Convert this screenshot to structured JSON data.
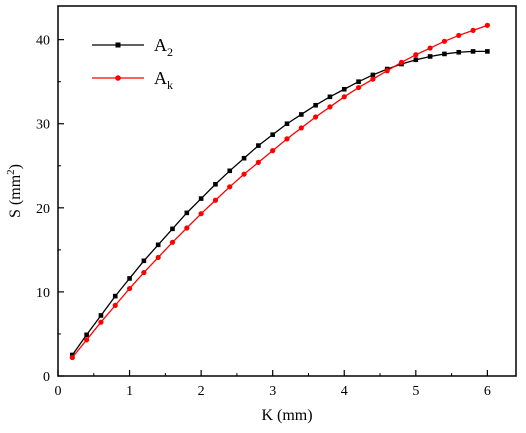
{
  "chart_data": {
    "type": "line",
    "xlabel": "K (mm)",
    "ylabel_main": "S (mm",
    "ylabel_sup": "2",
    "ylabel_close": ")",
    "xlim": [
      0,
      6.4
    ],
    "ylim": [
      0,
      44
    ],
    "xticks": [
      0,
      1,
      2,
      3,
      4,
      5,
      6
    ],
    "yticks": [
      0,
      10,
      20,
      30,
      40
    ],
    "legend_position": "top-left",
    "x": [
      0.2,
      0.4,
      0.6,
      0.8,
      1.0,
      1.2,
      1.4,
      1.6,
      1.8,
      2.0,
      2.2,
      2.4,
      2.6,
      2.8,
      3.0,
      3.2,
      3.4,
      3.6,
      3.8,
      4.0,
      4.2,
      4.4,
      4.6,
      4.8,
      5.0,
      5.2,
      5.4,
      5.6,
      5.8,
      6.0
    ],
    "series": [
      {
        "name_base": "A",
        "name_sub": "2",
        "color": "#000000",
        "values": [
          2.5,
          4.9,
          7.2,
          9.5,
          11.6,
          13.7,
          15.6,
          17.5,
          19.4,
          21.1,
          22.8,
          24.4,
          25.9,
          27.4,
          28.7,
          30.0,
          31.1,
          32.2,
          33.2,
          34.1,
          35.0,
          35.8,
          36.5,
          37.1,
          37.6,
          38.0,
          38.3,
          38.5,
          38.6,
          38.6
        ]
      },
      {
        "name_base": "A",
        "name_sub": "k",
        "color": "#ff0000",
        "values": [
          2.2,
          4.3,
          6.4,
          8.4,
          10.4,
          12.3,
          14.1,
          15.9,
          17.6,
          19.3,
          20.9,
          22.5,
          24.0,
          25.4,
          26.8,
          28.2,
          29.5,
          30.8,
          32.0,
          33.2,
          34.3,
          35.3,
          36.3,
          37.3,
          38.2,
          39.0,
          39.8,
          40.5,
          41.1,
          41.7
        ]
      }
    ]
  }
}
